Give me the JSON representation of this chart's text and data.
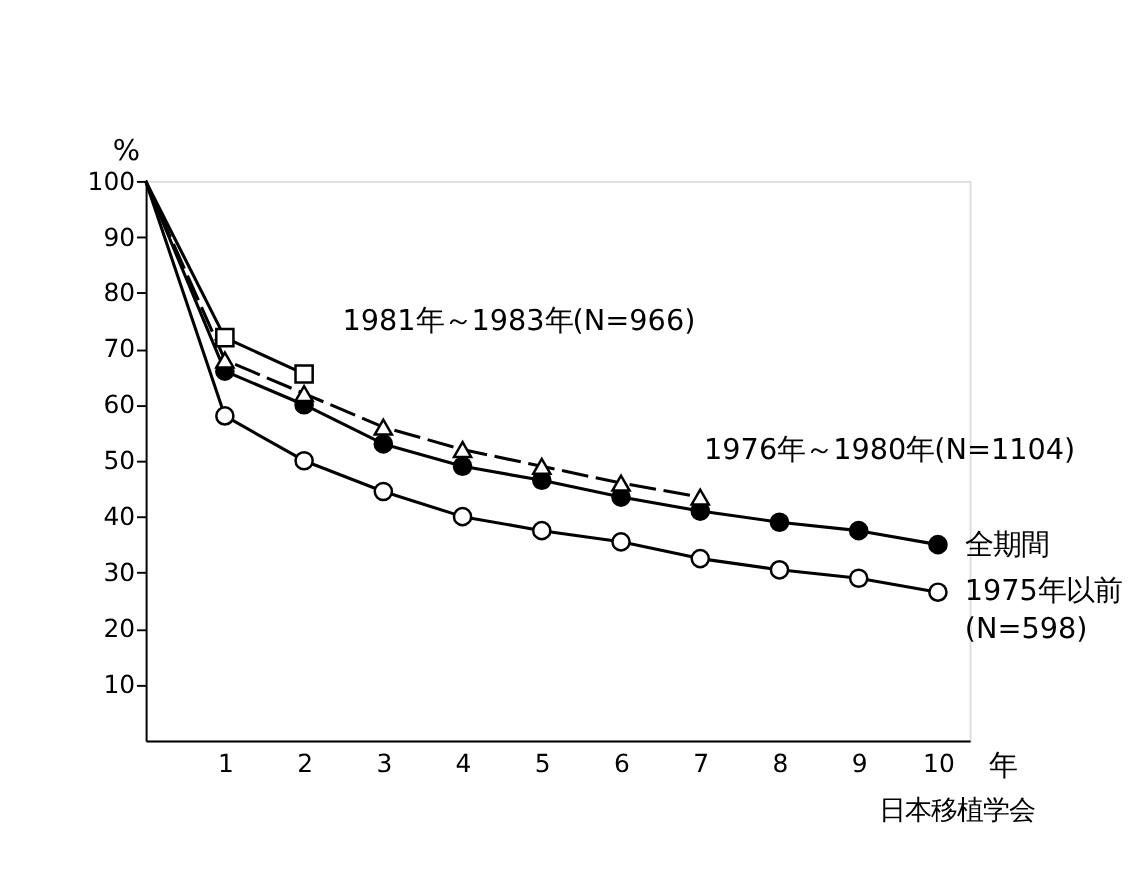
{
  "chart_data": {
    "type": "line",
    "xlabel": "年",
    "ylabel": "%",
    "x": [
      0,
      1,
      2,
      3,
      4,
      5,
      6,
      7,
      8,
      9,
      10
    ],
    "xlim": [
      0,
      10.4
    ],
    "xticks": [
      1,
      2,
      3,
      4,
      5,
      6,
      7,
      8,
      9,
      10
    ],
    "ylim": [
      0,
      100
    ],
    "yticks": [
      10,
      20,
      30,
      40,
      50,
      60,
      70,
      80,
      90,
      100
    ],
    "grid": false,
    "legend": false,
    "series": [
      {
        "name": "全期間",
        "color": "#000000",
        "marker": "circle",
        "line_style": "solid",
        "values": [
          100,
          66,
          60,
          53,
          49,
          46.5,
          43.5,
          41,
          39,
          37.5,
          35
        ]
      },
      {
        "name": "1975年以前\n(N=598)",
        "color": "#000000",
        "marker": "circle",
        "line_style": "solid",
        "values": [
          100,
          58,
          50,
          44.5,
          40,
          37.5,
          35.5,
          32.5,
          30.5,
          29,
          26.5
        ]
      },
      {
        "name": "1976年～1980年(N=1104)",
        "color": "#000000",
        "marker": "triangle",
        "line_style": "dashed",
        "values": [
          100,
          68,
          62,
          56,
          52,
          49,
          46,
          43.5,
          null,
          null,
          null
        ]
      },
      {
        "name": "1981年～1983年(N=966)",
        "color": "#000000",
        "marker": "square",
        "line_style": "solid",
        "values": [
          100,
          72,
          65.5,
          null,
          null,
          null,
          null,
          null,
          null,
          null,
          null
        ]
      }
    ],
    "annotations": [
      "日本移植学会"
    ]
  }
}
